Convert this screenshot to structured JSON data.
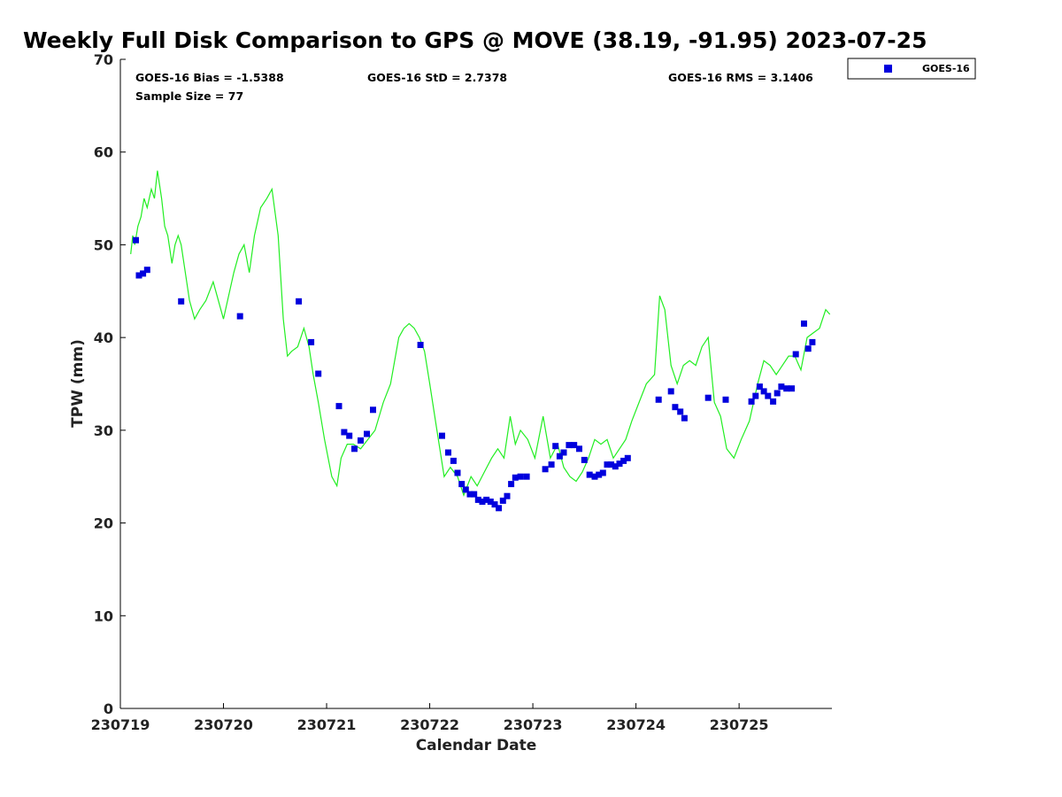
{
  "chart_data": {
    "type": "scatter",
    "title": "Weekly Full Disk Comparison to GPS @ MOVE (38.19, -91.95) 2023-07-25",
    "xlabel": "Calendar Date",
    "ylabel": "TPW (mm)",
    "xlim": [
      230719,
      230725.9
    ],
    "ylim": [
      0,
      70
    ],
    "x_ticks": [
      230719,
      230720,
      230721,
      230722,
      230723,
      230724,
      230725
    ],
    "x_tick_labels": [
      "230719",
      "230720",
      "230721",
      "230722",
      "230723",
      "230724",
      "230725"
    ],
    "y_ticks": [
      0,
      10,
      20,
      30,
      40,
      50,
      60,
      70
    ],
    "y_tick_labels": [
      "0",
      "10",
      "20",
      "30",
      "40",
      "50",
      "60",
      "70"
    ],
    "stats": {
      "bias": "GOES-16 Bias = -1.5388",
      "std": "GOES-16 StD = 2.7378",
      "rms": "GOES-16 RMS = 3.1406",
      "sample": "Sample Size = 77"
    },
    "legend": {
      "position": "top-right",
      "entries": [
        "GOES-16"
      ]
    },
    "colors": {
      "goes": "#0000dd",
      "gps": "#22ee22"
    },
    "series": [
      {
        "name": "GPS",
        "style": "line",
        "x": [
          230719.1,
          230719.12,
          230719.14,
          230719.17,
          230719.2,
          230719.23,
          230719.26,
          230719.3,
          230719.33,
          230719.36,
          230719.4,
          230719.43,
          230719.46,
          230719.5,
          230719.53,
          230719.56,
          230719.59,
          230719.63,
          230719.67,
          230719.72,
          230719.77,
          230719.83,
          230719.9,
          230720.0,
          230720.1,
          230720.15,
          230720.2,
          230720.25,
          230720.3,
          230720.36,
          230720.42,
          230720.47,
          230720.53,
          230720.58,
          230720.62,
          230720.66,
          230720.72,
          230720.78,
          230720.83,
          230720.87,
          230720.92,
          230720.98,
          230721.05,
          230721.1,
          230721.14,
          230721.2,
          230721.26,
          230721.33,
          230721.4,
          230721.47,
          230721.55,
          230721.62,
          230721.7,
          230721.75,
          230721.8,
          230721.85,
          230721.9,
          230721.95,
          230722.0,
          230722.07,
          230722.14,
          230722.2,
          230722.27,
          230722.33,
          230722.4,
          230722.46,
          230722.53,
          230722.6,
          230722.66,
          230722.72,
          230722.78,
          230722.83,
          230722.88,
          230722.95,
          230723.02,
          230723.1,
          230723.17,
          230723.24,
          230723.3,
          230723.36,
          230723.42,
          230723.48,
          230723.54,
          230723.6,
          230723.66,
          230723.72,
          230723.78,
          230723.84,
          230723.9,
          230723.96,
          230724.03,
          230724.1,
          230724.18,
          230724.23,
          230724.28,
          230724.34,
          230724.4,
          230724.46,
          230724.52,
          230724.58,
          230724.64,
          230724.7,
          230724.76,
          230724.82,
          230724.88,
          230724.95,
          230725.02,
          230725.1,
          230725.18,
          230725.24,
          230725.3,
          230725.36,
          230725.42,
          230725.48,
          230725.54,
          230725.6,
          230725.66,
          230725.72,
          230725.78,
          230725.84,
          230725.88
        ],
        "y": [
          49,
          51,
          50,
          52,
          53,
          55,
          54,
          56,
          55,
          58,
          55,
          52,
          51,
          48,
          50,
          51,
          50,
          47,
          44,
          42,
          43,
          44,
          46,
          42,
          47,
          49,
          50,
          47,
          51,
          54,
          55,
          56,
          51,
          42,
          38,
          38.5,
          39,
          41,
          39,
          36,
          33,
          29,
          25,
          24,
          27,
          28.5,
          28.5,
          28,
          29,
          30,
          33,
          35,
          40,
          41,
          41.5,
          41,
          40,
          38.5,
          35,
          30,
          25,
          26,
          25,
          23,
          25,
          24,
          25.5,
          27,
          28,
          27,
          31.5,
          28.5,
          30,
          29,
          27,
          31.5,
          27,
          28.5,
          26,
          25,
          24.5,
          25.5,
          27,
          29,
          28.5,
          29,
          27,
          28,
          29,
          31,
          33,
          35,
          36,
          44.5,
          43,
          37,
          35,
          37,
          37.5,
          37,
          39,
          40,
          33,
          31.5,
          28,
          27,
          29,
          31,
          35,
          37.5,
          37,
          36,
          37,
          38,
          38,
          36.5,
          40,
          40.5,
          41,
          43,
          42.5
        ]
      },
      {
        "name": "GOES-16",
        "style": "marker",
        "x": [
          230719.15,
          230719.18,
          230719.22,
          230719.26,
          230719.59,
          230720.16,
          230720.73,
          230720.85,
          230720.92,
          230721.12,
          230721.17,
          230721.22,
          230721.27,
          230721.33,
          230721.39,
          230721.45,
          230721.91,
          230722.12,
          230722.18,
          230722.23,
          230722.27,
          230722.31,
          230722.35,
          230722.39,
          230722.43,
          230722.47,
          230722.51,
          230722.55,
          230722.59,
          230722.63,
          230722.67,
          230722.71,
          230722.75,
          230722.79,
          230722.83,
          230722.88,
          230722.94,
          230723.12,
          230723.18,
          230723.22,
          230723.26,
          230723.3,
          230723.35,
          230723.4,
          230723.45,
          230723.5,
          230723.55,
          230723.6,
          230723.64,
          230723.68,
          230723.72,
          230723.76,
          230723.8,
          230723.84,
          230723.88,
          230723.92,
          230724.22,
          230724.34,
          230724.38,
          230724.43,
          230724.47,
          230724.7,
          230724.87,
          230725.12,
          230725.16,
          230725.2,
          230725.24,
          230725.28,
          230725.33,
          230725.37,
          230725.41,
          230725.46,
          230725.51,
          230725.55,
          230725.63,
          230725.67,
          230725.71
        ],
        "y": [
          50.5,
          46.7,
          46.9,
          47.3,
          43.9,
          42.3,
          43.9,
          39.5,
          36.1,
          32.6,
          29.8,
          29.4,
          28,
          28.9,
          29.6,
          32.2,
          39.2,
          29.4,
          27.6,
          26.7,
          25.4,
          24.2,
          23.6,
          23.1,
          23.1,
          22.5,
          22.3,
          22.5,
          22.3,
          22,
          21.6,
          22.4,
          22.9,
          24.2,
          24.9,
          25,
          25,
          25.8,
          26.3,
          28.3,
          27.2,
          27.6,
          28.4,
          28.4,
          28,
          26.8,
          25.2,
          25,
          25.2,
          25.4,
          26.3,
          26.3,
          26.1,
          26.4,
          26.7,
          27,
          33.3,
          34.2,
          32.5,
          32,
          31.3,
          33.5,
          33.3,
          33.1,
          33.7,
          34.7,
          34.2,
          33.7,
          33.1,
          34,
          34.7,
          34.5,
          34.5,
          38.2,
          41.5,
          38.8,
          39.5
        ]
      }
    ]
  }
}
